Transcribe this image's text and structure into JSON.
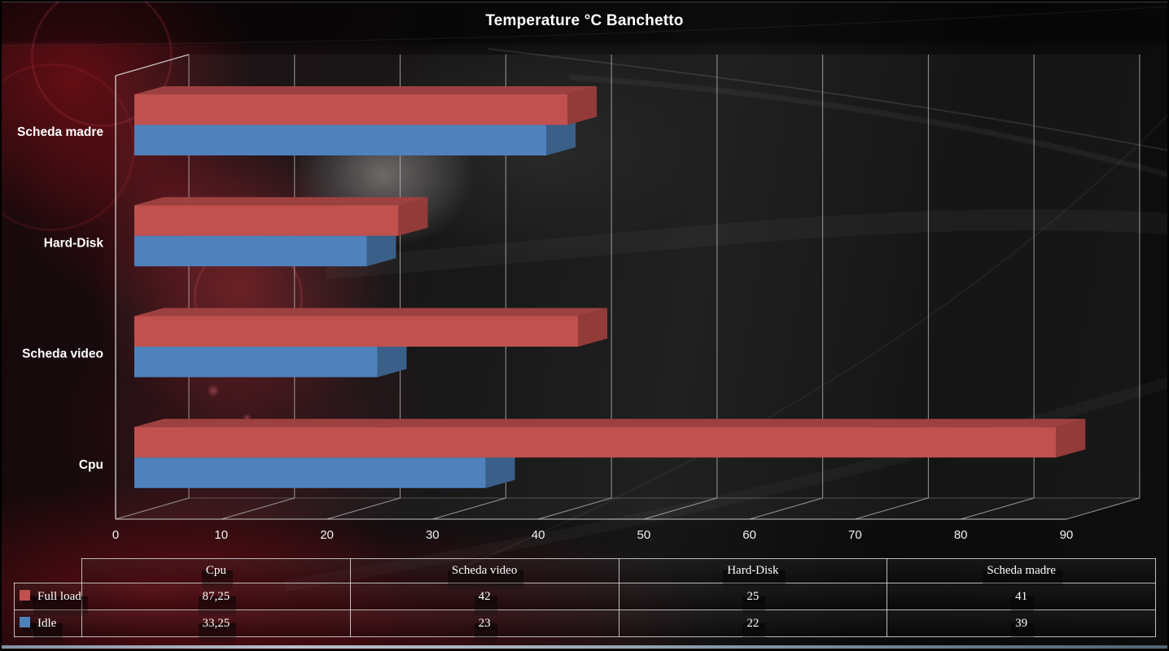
{
  "title": "Temperature °C Banchetto",
  "chart_data": {
    "type": "bar",
    "style": "3d-horizontal",
    "title": "Temperature °C Banchetto",
    "categories": [
      "Cpu",
      "Scheda video",
      "Hard-Disk",
      "Scheda madre"
    ],
    "category_display_order_top_to_bottom": [
      "Scheda madre",
      "Hard-Disk",
      "Scheda video",
      "Cpu"
    ],
    "series": [
      {
        "name": "Full load",
        "color": "#c0504d",
        "values": [
          87.25,
          42,
          25,
          41
        ],
        "display_values": [
          "87,25",
          "42",
          "25",
          "41"
        ]
      },
      {
        "name": "Idle",
        "color": "#4f81bd",
        "values": [
          33.25,
          23,
          22,
          39
        ],
        "display_values": [
          "33,25",
          "23",
          "22",
          "39"
        ]
      }
    ],
    "value_axis": {
      "min": 0,
      "max": 90,
      "step": 10,
      "tick_labels": [
        "0",
        "10",
        "20",
        "30",
        "40",
        "50",
        "60",
        "70",
        "80",
        "90"
      ]
    },
    "grid": true,
    "legend_position": "bottom-table"
  },
  "table": {
    "column_headers": [
      "Cpu",
      "Scheda video",
      "Hard-Disk",
      "Scheda madre"
    ],
    "rows": [
      {
        "label": "Full load",
        "swatch_color": "#c0504d",
        "values": [
          "87,25",
          "42",
          "25",
          "41"
        ]
      },
      {
        "label": "Idle",
        "swatch_color": "#4f81bd",
        "values": [
          "33,25",
          "23",
          "22",
          "39"
        ]
      }
    ]
  },
  "colors": {
    "full_load_front": "#c0514e",
    "full_load_top": "#9d4140",
    "full_load_side": "#933b39",
    "idle_front": "#4f81bd",
    "idle_top": "#40699a",
    "idle_side": "#3a5f88",
    "gridline": "#bebebe",
    "label_text": "#ffffff"
  }
}
